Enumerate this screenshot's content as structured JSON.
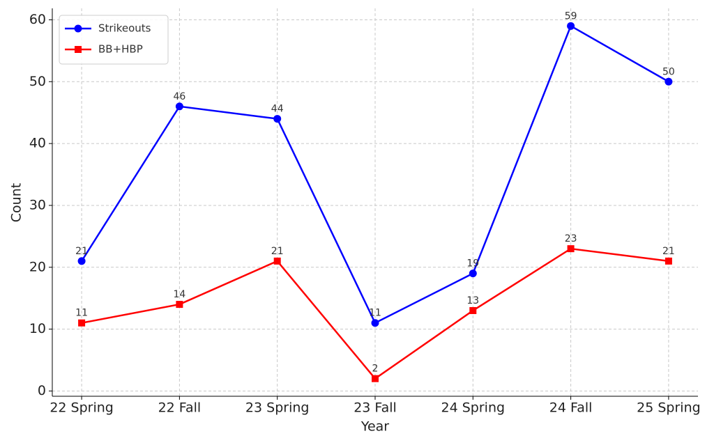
{
  "chart_data": {
    "type": "line",
    "categories": [
      "22 Spring",
      "22 Fall",
      "23 Spring",
      "23 Fall",
      "24 Spring",
      "24 Fall",
      "25 Spring"
    ],
    "series": [
      {
        "name": "Strikeouts",
        "color": "#0000ff",
        "marker": "circle",
        "values": [
          21,
          46,
          44,
          11,
          19,
          59,
          50
        ]
      },
      {
        "name": "BB+HBP",
        "color": "#ff0000",
        "marker": "square",
        "values": [
          11,
          14,
          21,
          2,
          13,
          23,
          21
        ]
      }
    ],
    "x_label": "Year",
    "y_label": "Count",
    "ylim": [
      -0.85,
      61.85
    ],
    "yticks": [
      0,
      10,
      20,
      30,
      40,
      50,
      60
    ],
    "grid": true,
    "legend": "upper-left"
  }
}
